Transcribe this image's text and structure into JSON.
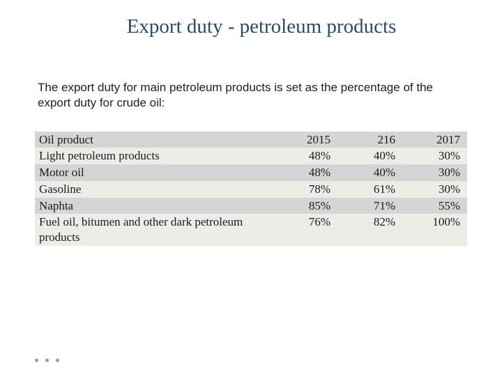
{
  "title": "Export duty - petroleum products",
  "description": "The export duty for main petroleum products is set as the percentage of the export duty for crude oil:",
  "table": {
    "type": "table",
    "background_odd": "#d5d5d5",
    "background_even": "#edede8",
    "text_color": "#1a1a1a",
    "font_family": "Palatino Linotype",
    "font_size_pt": 13,
    "columns": [
      "Oil product",
      "2015",
      "216",
      "2017"
    ],
    "column_alignment": [
      "left",
      "right",
      "right",
      "right"
    ],
    "column_widths_pct": [
      55,
      15,
      15,
      15
    ],
    "rows": [
      [
        "Light petroleum products",
        "48%",
        "40%",
        "30%"
      ],
      [
        "Motor oil",
        "48%",
        "40%",
        "30%"
      ],
      [
        "Gasoline",
        "78%",
        "61%",
        "30%"
      ],
      [
        "Naphta",
        "85%",
        "71%",
        "55%"
      ],
      [
        "Fuel oil, bitumen and other dark petroleum products",
        "76%",
        "82%",
        "100%"
      ]
    ]
  },
  "title_color": "#2a4a6a",
  "title_fontsize_pt": 22,
  "description_font_family": "Century Gothic",
  "description_fontsize_pt": 13,
  "background_color": "#ffffff",
  "dot_color": "#9a9a9a"
}
